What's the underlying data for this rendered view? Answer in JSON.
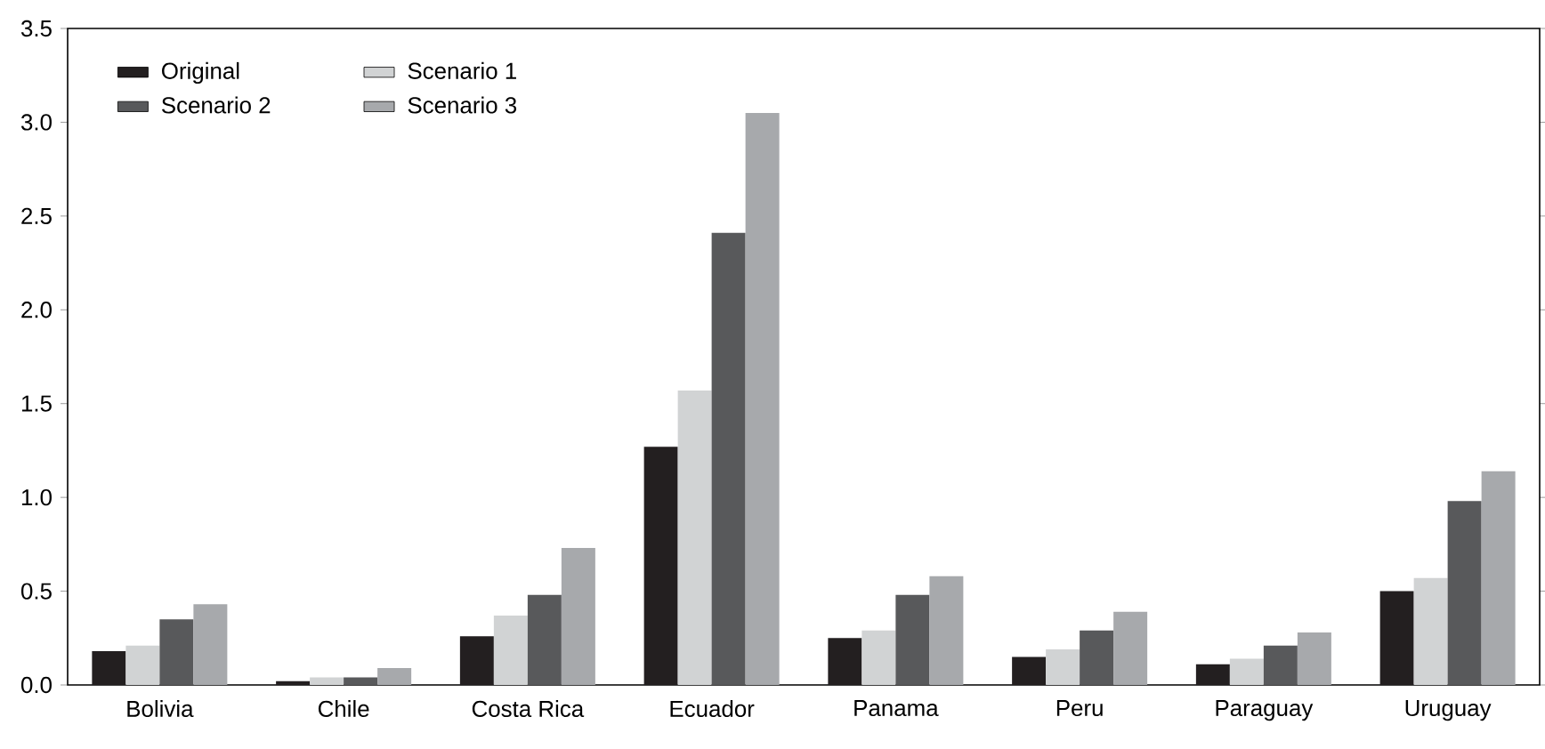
{
  "chart_data": {
    "type": "bar",
    "categories": [
      "Bolivia",
      "Chile",
      "Costa Rica",
      "Ecuador",
      "Panama",
      "Peru",
      "Paraguay",
      "Uruguay"
    ],
    "series": [
      {
        "name": "Original",
        "color": "#231f20",
        "values": [
          0.18,
          0.02,
          0.26,
          1.27,
          0.25,
          0.15,
          0.11,
          0.5
        ]
      },
      {
        "name": "Scenario 1",
        "color": "#d1d3d4",
        "values": [
          0.21,
          0.04,
          0.37,
          1.57,
          0.29,
          0.19,
          0.14,
          0.57
        ]
      },
      {
        "name": "Scenario 2",
        "color": "#58595b",
        "values": [
          0.35,
          0.04,
          0.48,
          2.41,
          0.48,
          0.29,
          0.21,
          0.98
        ]
      },
      {
        "name": "Scenario 3",
        "color": "#a7a9ac",
        "values": [
          0.43,
          0.09,
          0.73,
          3.05,
          0.58,
          0.39,
          0.28,
          1.14
        ]
      }
    ],
    "ylim": [
      0,
      3.5
    ],
    "yticks": [
      {
        "value": 0,
        "label": "0.0"
      },
      {
        "value": 0.5,
        "label": "0.5"
      },
      {
        "value": 1,
        "label": "1.0"
      },
      {
        "value": 1.5,
        "label": "1.5"
      },
      {
        "value": 2,
        "label": "2.0"
      },
      {
        "value": 2.5,
        "label": "2.5"
      },
      {
        "value": 3,
        "label": "3.0"
      },
      {
        "value": 3.5,
        "label": "3.5"
      }
    ],
    "legend": "top left"
  }
}
